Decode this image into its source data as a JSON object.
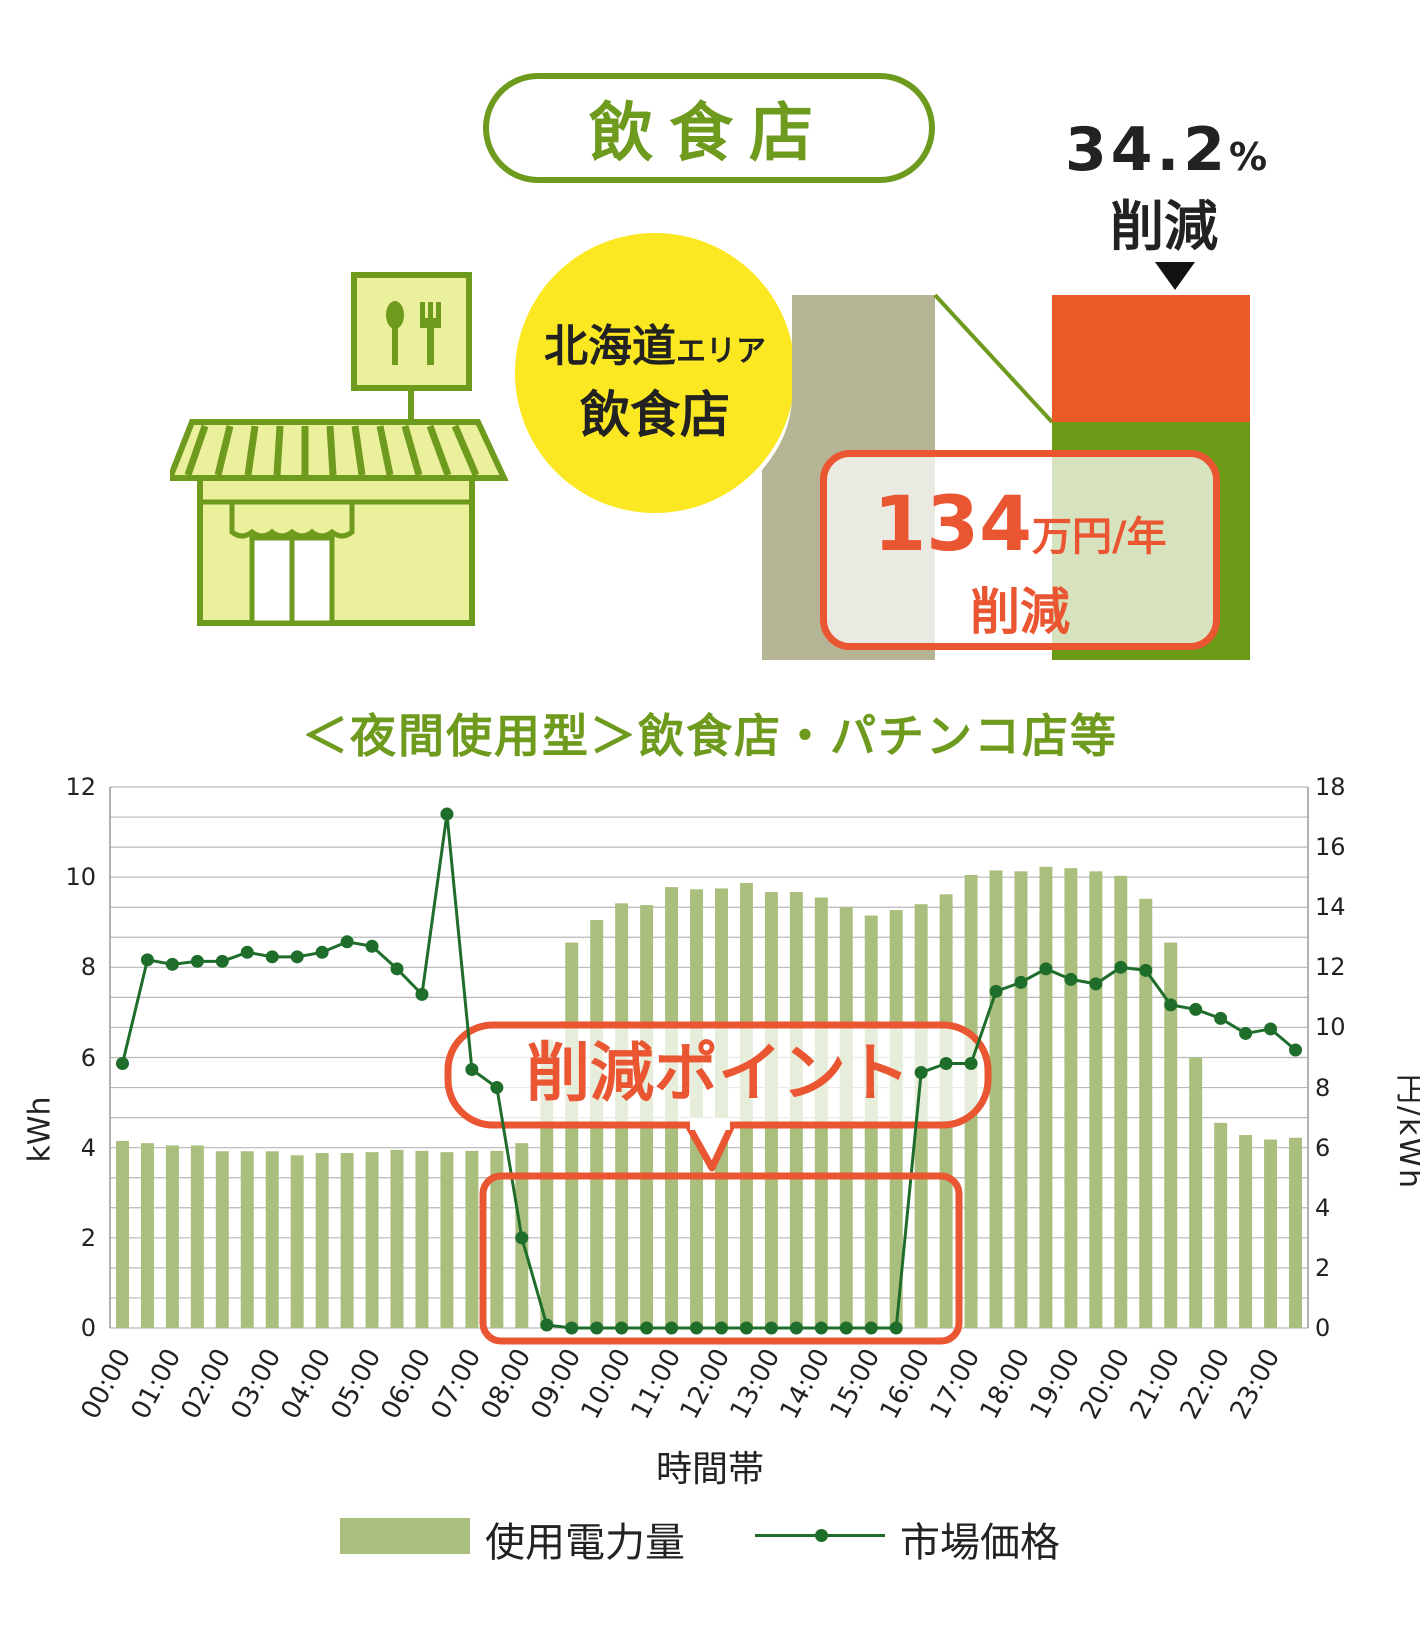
{
  "header": {
    "title": "飲食店",
    "reduction_pct": "34.2",
    "reduction_pct_unit": "%",
    "reduction_label": "削減"
  },
  "area_badge": {
    "region": "北海道",
    "region_suffix": "エリア",
    "business": "飲食店"
  },
  "savings_box": {
    "value": "134",
    "unit": "万円/年",
    "label": "削減"
  },
  "subtitle": "＜夜間使用型＞飲食店・パチンコ店等",
  "callout": {
    "label": "削減ポイント"
  },
  "legend": {
    "bar": "使用電力量",
    "line": "市場価格"
  },
  "colors": {
    "brand_green": "#6e9a1e",
    "accent_orange": "#ea5532",
    "bar_green": "#aabf7d",
    "price_line": "#1f6d2b",
    "badge_yellow": "#fbe823",
    "before_bar": "#b5b596",
    "after_bar_reduced": "#ea5a27",
    "after_bar_remaining": "#6b9a17"
  },
  "icons": {
    "store": "restaurant-store-icon",
    "signboard": "spoon-fork-icon"
  },
  "chart_data": {
    "type": "bar",
    "xlabel": "時間帯",
    "ylabel": "kWh",
    "y2label": "円/kWh",
    "ylim": [
      0,
      12
    ],
    "y2lim": [
      0,
      18
    ],
    "y_ticks": [
      0,
      2,
      4,
      6,
      8,
      10,
      12
    ],
    "y2_ticks": [
      0,
      2,
      4,
      6,
      8,
      10,
      12,
      14,
      16,
      18
    ],
    "x_ticks": [
      "00:00",
      "01:00",
      "02:00",
      "03:00",
      "04:00",
      "05:00",
      "06:00",
      "07:00",
      "08:00",
      "09:00",
      "10:00",
      "11:00",
      "12:00",
      "13:00",
      "14:00",
      "15:00",
      "16:00",
      "17:00",
      "18:00",
      "19:00",
      "20:00",
      "21:00",
      "22:00",
      "23:00"
    ],
    "grid": true,
    "legend_position": "bottom",
    "series": [
      {
        "name": "使用電力量",
        "type": "bar",
        "axis": "left",
        "values": [
          4.15,
          4.1,
          4.05,
          4.05,
          3.92,
          3.92,
          3.92,
          3.83,
          3.88,
          3.88,
          3.9,
          3.95,
          3.93,
          3.9,
          3.93,
          3.93,
          4.1,
          6.4,
          8.55,
          9.05,
          9.42,
          9.38,
          9.78,
          9.73,
          9.75,
          9.87,
          9.67,
          9.67,
          9.55,
          9.33,
          9.15,
          9.27,
          9.4,
          9.62,
          10.05,
          10.15,
          10.13,
          10.23,
          10.2,
          10.13,
          10.03,
          9.52,
          8.55,
          6.0,
          4.55,
          4.28,
          4.18,
          4.22
        ]
      },
      {
        "name": "市場価格",
        "type": "line",
        "axis": "right",
        "values": [
          8.8,
          12.25,
          12.1,
          12.2,
          12.2,
          12.5,
          12.35,
          12.35,
          12.5,
          12.85,
          12.7,
          11.95,
          11.1,
          17.1,
          8.6,
          8.0,
          3.0,
          0.1,
          0.0,
          0.0,
          0.0,
          0.0,
          0.0,
          0.0,
          0.0,
          0.0,
          0.0,
          0.0,
          0.0,
          0.0,
          0.0,
          0.0,
          8.5,
          8.8,
          8.8,
          11.2,
          11.5,
          11.95,
          11.6,
          11.45,
          12.0,
          11.9,
          10.75,
          10.6,
          10.3,
          9.8,
          9.95,
          9.25
        ]
      }
    ]
  }
}
